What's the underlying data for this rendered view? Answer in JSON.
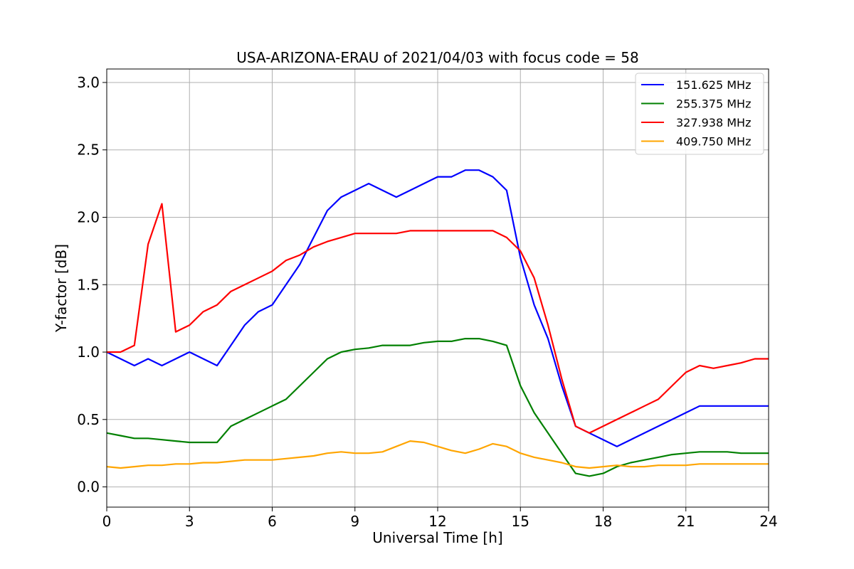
{
  "chart_data": {
    "type": "line",
    "title": "USA-ARIZONA-ERAU of 2021/04/03 with focus code = 58",
    "xlabel": "Universal Time [h]",
    "ylabel": "Y-factor [dB]",
    "xlim": [
      0,
      24
    ],
    "ylim": [
      -0.15,
      3.1
    ],
    "xticks": [
      0,
      3,
      6,
      9,
      12,
      15,
      18,
      21,
      24
    ],
    "xtick_labels": [
      "0",
      "3",
      "6",
      "9",
      "12",
      "15",
      "18",
      "21",
      "24"
    ],
    "yticks": [
      0.0,
      0.5,
      1.0,
      1.5,
      2.0,
      2.5,
      3.0
    ],
    "ytick_labels": [
      "0.0",
      "0.5",
      "1.0",
      "1.5",
      "2.0",
      "2.5",
      "3.0"
    ],
    "grid": true,
    "legend_position": "top-right",
    "x": [
      0,
      0.5,
      1,
      1.5,
      2,
      2.5,
      3,
      3.5,
      4,
      4.5,
      5,
      5.5,
      6,
      6.5,
      7,
      7.5,
      8,
      8.5,
      9,
      9.5,
      10,
      10.5,
      11,
      11.5,
      12,
      12.5,
      13,
      13.5,
      14,
      14.5,
      15,
      15.5,
      16,
      16.5,
      17,
      17.5,
      18,
      18.5,
      19,
      19.5,
      20,
      20.5,
      21,
      21.5,
      22,
      22.5,
      23,
      23.5,
      24
    ],
    "series": [
      {
        "name": "151.625 MHz",
        "color": "#0000ff",
        "values": [
          1.0,
          0.95,
          0.9,
          0.95,
          0.9,
          0.95,
          1.0,
          0.95,
          0.9,
          1.05,
          1.2,
          1.3,
          1.35,
          1.5,
          1.65,
          1.85,
          2.05,
          2.15,
          2.2,
          2.25,
          2.2,
          2.15,
          2.2,
          2.25,
          2.3,
          2.3,
          2.35,
          2.35,
          2.3,
          2.2,
          1.7,
          1.35,
          1.1,
          0.75,
          0.45,
          0.4,
          0.35,
          0.3,
          0.35,
          0.4,
          0.45,
          0.5,
          0.55,
          0.6,
          0.6,
          0.6,
          0.6,
          0.6,
          0.6
        ]
      },
      {
        "name": "255.375 MHz",
        "color": "#008000",
        "values": [
          0.4,
          0.38,
          0.36,
          0.36,
          0.35,
          0.34,
          0.33,
          0.33,
          0.33,
          0.45,
          0.5,
          0.55,
          0.6,
          0.65,
          0.75,
          0.85,
          0.95,
          1.0,
          1.02,
          1.03,
          1.05,
          1.05,
          1.05,
          1.07,
          1.08,
          1.08,
          1.1,
          1.1,
          1.08,
          1.05,
          0.75,
          0.55,
          0.4,
          0.25,
          0.1,
          0.08,
          0.1,
          0.15,
          0.18,
          0.2,
          0.22,
          0.24,
          0.25,
          0.26,
          0.26,
          0.26,
          0.25,
          0.25,
          0.25
        ]
      },
      {
        "name": "327.938 MHz",
        "color": "#ff0000",
        "values": [
          1.0,
          1.0,
          1.05,
          1.8,
          2.1,
          1.15,
          1.2,
          1.3,
          1.35,
          1.45,
          1.5,
          1.55,
          1.6,
          1.68,
          1.72,
          1.78,
          1.82,
          1.85,
          1.88,
          1.88,
          1.88,
          1.88,
          1.9,
          1.9,
          1.9,
          1.9,
          1.9,
          1.9,
          1.9,
          1.85,
          1.75,
          1.55,
          1.2,
          0.8,
          0.45,
          0.4,
          0.45,
          0.5,
          0.55,
          0.6,
          0.65,
          0.75,
          0.85,
          0.9,
          0.88,
          0.9,
          0.92,
          0.95,
          0.95
        ]
      },
      {
        "name": "409.750 MHz",
        "color": "#ffa500",
        "values": [
          0.15,
          0.14,
          0.15,
          0.16,
          0.16,
          0.17,
          0.17,
          0.18,
          0.18,
          0.19,
          0.2,
          0.2,
          0.2,
          0.21,
          0.22,
          0.23,
          0.25,
          0.26,
          0.25,
          0.25,
          0.26,
          0.3,
          0.34,
          0.33,
          0.3,
          0.27,
          0.25,
          0.28,
          0.32,
          0.3,
          0.25,
          0.22,
          0.2,
          0.18,
          0.15,
          0.14,
          0.15,
          0.16,
          0.15,
          0.15,
          0.16,
          0.16,
          0.16,
          0.17,
          0.17,
          0.17,
          0.17,
          0.17,
          0.17
        ]
      }
    ]
  }
}
